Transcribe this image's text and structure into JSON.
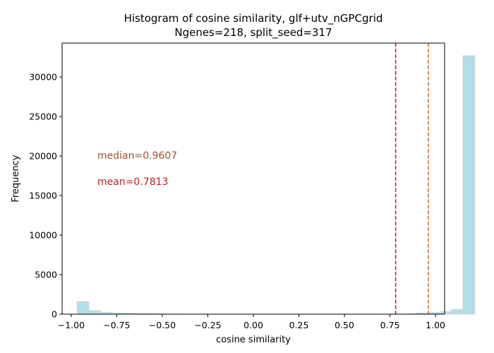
{
  "chart_data": {
    "type": "bar",
    "title": "Histogram of cosine similarity, glf+utv_nGPCgrid",
    "subtitle": "Ngenes=218, split_seed=317",
    "xlabel": "cosine similarity",
    "ylabel": "Frequency",
    "xlim": [
      -1.05,
      1.05
    ],
    "ylim": [
      0,
      34300
    ],
    "xticks": [
      -1.0,
      -0.75,
      -0.5,
      -0.25,
      0.0,
      0.25,
      0.5,
      0.75,
      1.0
    ],
    "xtick_labels": [
      "−1.00",
      "−0.75",
      "−0.50",
      "−0.25",
      "0.00",
      "0.25",
      "0.50",
      "0.75",
      "1.00"
    ],
    "yticks": [
      0,
      5000,
      10000,
      15000,
      20000,
      25000,
      30000
    ],
    "ytick_labels": [
      "0",
      "5000",
      "10000",
      "15000",
      "20000",
      "25000",
      "30000"
    ],
    "grid": false,
    "bin_start": -0.9675,
    "bin_width": 0.0642,
    "values": [
      1600,
      450,
      230,
      150,
      120,
      100,
      80,
      20,
      10,
      5,
      5,
      5,
      5,
      5,
      5,
      5,
      5,
      5,
      5,
      5,
      5,
      5,
      5,
      5,
      5,
      5,
      5,
      5,
      30,
      150,
      200,
      320,
      600,
      32700
    ],
    "bar_color": "#b0dfe5",
    "bar_edge_color": "#d3d3d3",
    "vlines": [
      {
        "x": 0.7813,
        "color": "#b22222",
        "style": "dashed",
        "label": "mean"
      },
      {
        "x": 0.9607,
        "color": "#d2691e",
        "style": "dashed",
        "label": "median"
      }
    ],
    "annotations": [
      {
        "text": "median=0.9607",
        "color": "#a0522d"
      },
      {
        "text": "mean=0.7813",
        "color": "#b22222"
      }
    ]
  }
}
